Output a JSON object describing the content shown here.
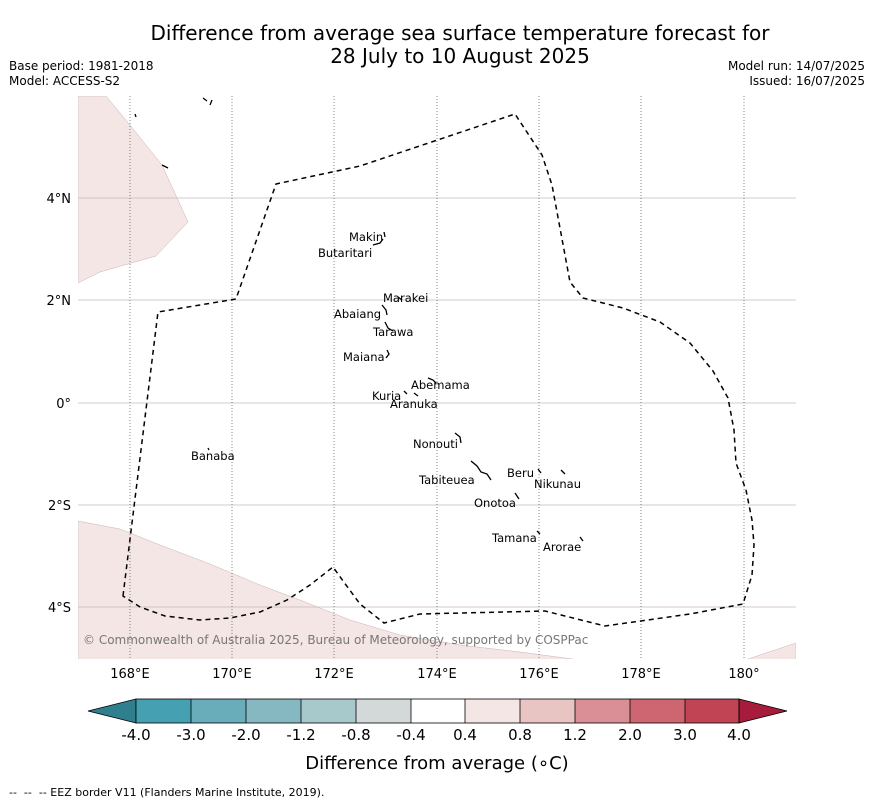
{
  "title": {
    "line1": "Difference from average sea surface temperature forecast for",
    "line2": "28 July to 10 August 2025"
  },
  "meta": {
    "base_period": "Base period: 1981-2018",
    "model": "Model: ACCESS-S2",
    "model_run": "Model run: 14/07/2025",
    "issued": "Issued: 16/07/2025"
  },
  "map": {
    "land_color": "#f3e6e5",
    "ocean_color": "#ffffff",
    "eez_line_style": "dashed black",
    "lon_ticks": [
      "168°E",
      "170°E",
      "172°E",
      "174°E",
      "176°E",
      "178°E",
      "180°"
    ],
    "lat_ticks": [
      "4°N",
      "2°N",
      "0°",
      "2°S",
      "4°S"
    ],
    "places": [
      {
        "name": "Makin"
      },
      {
        "name": "Butaritari"
      },
      {
        "name": "Marakei"
      },
      {
        "name": "Abaiang"
      },
      {
        "name": "Tarawa"
      },
      {
        "name": "Maiana"
      },
      {
        "name": "Abemama"
      },
      {
        "name": "Kuria"
      },
      {
        "name": "Aranuka"
      },
      {
        "name": "Nonouti"
      },
      {
        "name": "Banaba"
      },
      {
        "name": "Tabiteuea"
      },
      {
        "name": "Beru"
      },
      {
        "name": "Nikunau"
      },
      {
        "name": "Onotoa"
      },
      {
        "name": "Tamana"
      },
      {
        "name": "Arorae"
      }
    ],
    "copyright": "© Commonwealth of Australia 2025, Bureau of Meteorology, supported by COSPPac"
  },
  "colorbar": {
    "label": "Difference from average (∘C)",
    "ticks": [
      "-4.0",
      "-3.0",
      "-2.0",
      "-1.2",
      "-0.8",
      "-0.4",
      "0.4",
      "0.8",
      "1.2",
      "2.0",
      "3.0",
      "4.0"
    ],
    "colors": [
      "#2f7f8f",
      "#45a0b1",
      "#68adb9",
      "#86b8c2",
      "#a8c9cc",
      "#d3d9d8",
      "#ffffff",
      "#f4e6e4",
      "#e8c5c3",
      "#d98f95",
      "#cd6671",
      "#c14455",
      "#a71c3b"
    ]
  },
  "footer": "--  --  -- EEZ border V11 (Flanders Marine Institute, 2019)."
}
